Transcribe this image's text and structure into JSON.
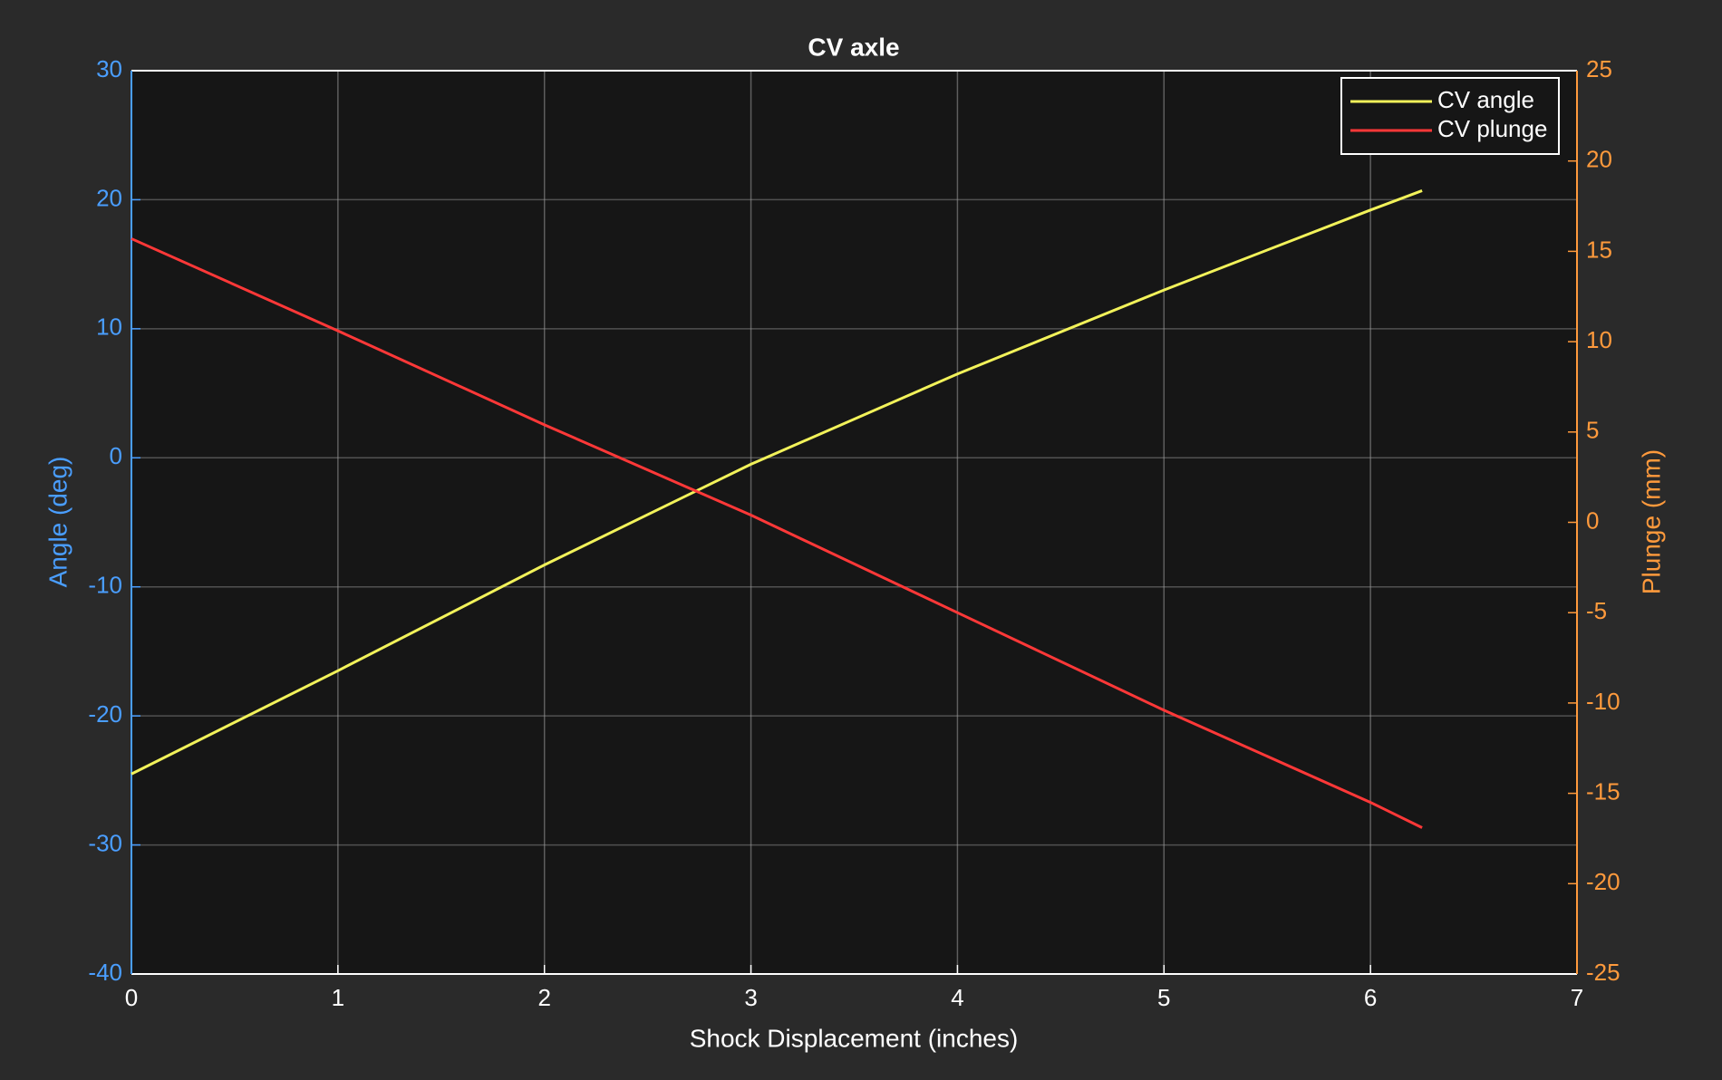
{
  "chart_data": {
    "type": "line",
    "title": "CV axle",
    "x_label": "Shock Displacement (inches)",
    "y_label": "Angle (deg)",
    "y2_label": "Plunge (mm)",
    "x": [
      0,
      1,
      2,
      3,
      4,
      5,
      6,
      6.25
    ],
    "series": [
      {
        "name": "CV angle",
        "color": "#f2f25a",
        "values": [
          -24.5,
          -16.5,
          -8.3,
          -0.5,
          6.5,
          13,
          19.2,
          20.7
        ]
      },
      {
        "name": "CV plunge",
        "color": "#ff3838",
        "axis": "y2",
        "values": [
          15.7,
          10.6,
          5.4,
          0.4,
          -5.0,
          -10.4,
          -15.5,
          -16.9
        ]
      }
    ],
    "xlim": [
      0,
      7
    ],
    "xticks": [
      0,
      1,
      2,
      3,
      4,
      5,
      6,
      7
    ],
    "ylim": [
      -40,
      30
    ],
    "yticks": [
      -40,
      -30,
      -20,
      -10,
      0,
      10,
      20,
      30
    ],
    "y2lim": [
      -25,
      25
    ],
    "y2ticks": [
      -25,
      -20,
      -15,
      -10,
      -5,
      0,
      5,
      10,
      15,
      20,
      25
    ],
    "grid": true,
    "legend": "top-right",
    "y_color": "#4a9eff",
    "y2_color": "#ff9a3c"
  }
}
